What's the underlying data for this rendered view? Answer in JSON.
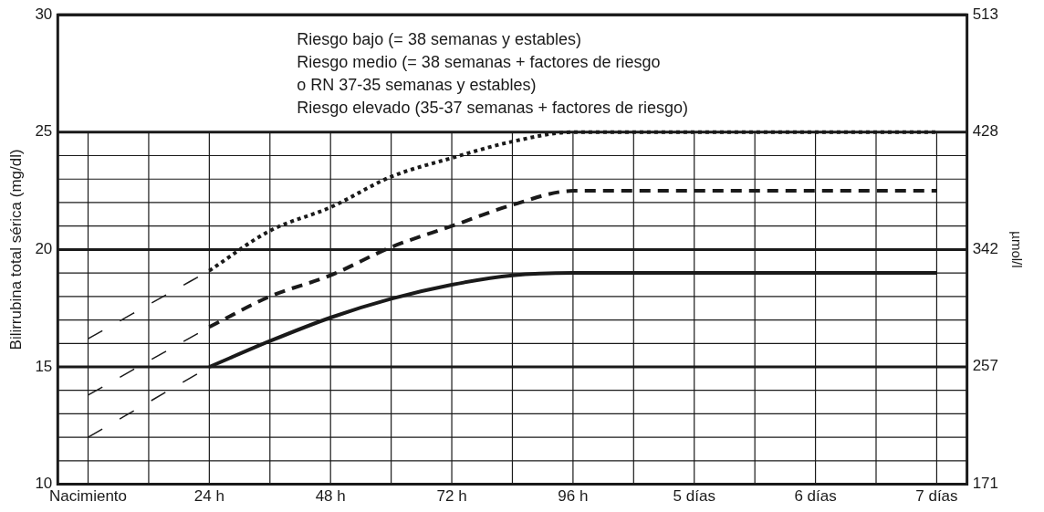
{
  "chart_data": {
    "type": "line",
    "ylabel": "Bilirrubina total sérica (mg/dl)",
    "y2label": "µmol/l",
    "annotations": [
      "Riesgo bajo (= 38 semanas y estables)",
      "Riesgo medio (= 38 semanas + factores de riesgo\no RN 37-35 semanas y estables)",
      "Riesgo elevado (35-37 semanas + factores de riesgo)"
    ],
    "categories": [
      "Nacimiento",
      null,
      "24 h",
      null,
      "48 h",
      null,
      "72 h",
      null,
      "96 h",
      null,
      "5 días",
      null,
      "6 días",
      null,
      "7 días"
    ],
    "ylim": [
      10,
      30
    ],
    "yticks": [
      10,
      {
        "value": 11,
        "label": null
      },
      {
        "value": 12,
        "label": null
      },
      {
        "value": 13,
        "label": null
      },
      {
        "value": 14,
        "label": null
      },
      15,
      {
        "value": 16,
        "label": null
      },
      {
        "value": 17,
        "label": null
      },
      {
        "value": 18,
        "label": null
      },
      {
        "value": 19,
        "label": null
      },
      20,
      {
        "value": 21,
        "label": null
      },
      {
        "value": 22,
        "label": null
      },
      {
        "value": 23,
        "label": null
      },
      {
        "value": 24,
        "label": null
      },
      25,
      30
    ],
    "y2lim": [
      171,
      513
    ],
    "y2ticks": [
      171,
      257,
      342,
      428,
      513
    ],
    "grid": true,
    "series": [
      {
        "color": "#1a1a1a",
        "line_style": "dotted",
        "values": [
          null,
          null,
          19.1,
          20.8,
          21.8,
          23.1,
          23.9,
          24.6,
          25,
          25,
          25,
          25,
          25,
          25,
          25
        ]
      },
      {
        "color": "#1a1a1a",
        "line_style": "dashed",
        "values": [
          null,
          null,
          16.7,
          18.0,
          18.9,
          20.1,
          21.0,
          21.9,
          22.5,
          22.5,
          22.5,
          22.5,
          22.5,
          22.5,
          22.5
        ]
      },
      {
        "color": "#1a1a1a",
        "line_style": "solid",
        "values": [
          null,
          null,
          15,
          16.1,
          17.1,
          17.9,
          18.5,
          18.9,
          19,
          19,
          19,
          19,
          19,
          19,
          19
        ]
      },
      {
        "color": "#1a1a1a",
        "line_style": "dashed",
        "values": [
          16.2,
          17.65,
          19.1,
          null,
          null,
          null,
          null,
          null,
          null,
          null,
          null,
          null,
          null,
          null,
          null
        ]
      },
      {
        "color": "#1a1a1a",
        "line_style": "dashed",
        "values": [
          13.8,
          15.25,
          16.7,
          null,
          null,
          null,
          null,
          null,
          null,
          null,
          null,
          null,
          null,
          null,
          null
        ]
      },
      {
        "color": "#1a1a1a",
        "line_style": "dashed",
        "values": [
          12.0,
          13.5,
          15,
          null,
          null,
          null,
          null,
          null,
          null,
          null,
          null,
          null,
          null,
          null,
          null
        ]
      }
    ]
  }
}
